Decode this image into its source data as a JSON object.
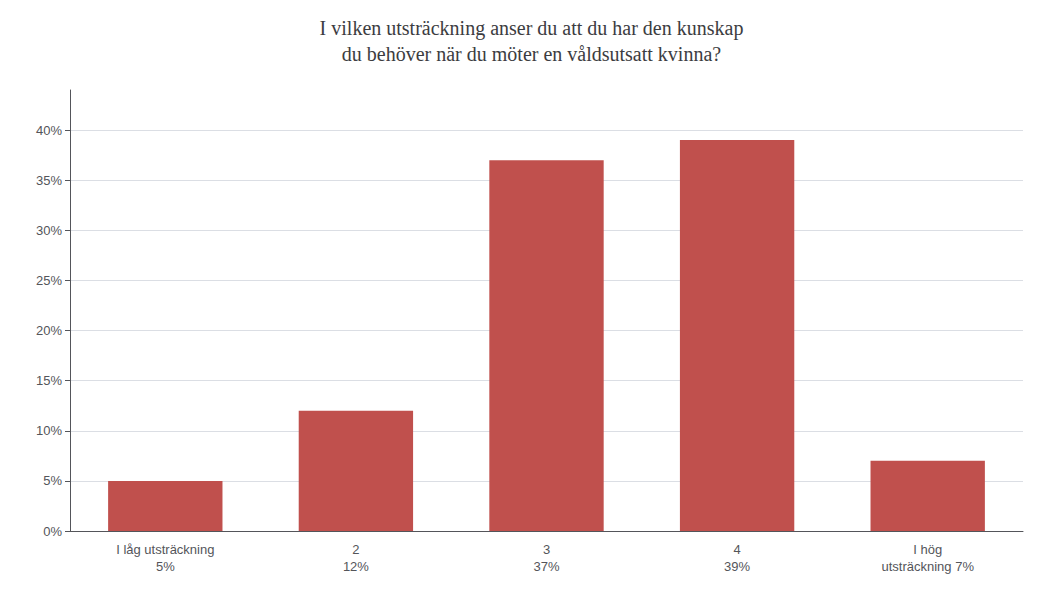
{
  "chart_data": {
    "type": "bar",
    "title": "I vilken utsträckning anser du att du har den kunskap\ndu behöver när du möter en våldsutsatt kvinna?",
    "categories": [
      "I låg utsträckning\n5%",
      "2\n12%",
      "3\n37%",
      "4\n39%",
      "I hög\nutsträckning 7%"
    ],
    "values": [
      5,
      12,
      37,
      39,
      7
    ],
    "color": "#C0504D",
    "ylim": [
      0,
      44
    ],
    "yticks": [
      {
        "value": 0,
        "label": "0%"
      },
      {
        "value": 5,
        "label": "5%"
      },
      {
        "value": 10,
        "label": "10%"
      },
      {
        "value": 15,
        "label": "15%"
      },
      {
        "value": 20,
        "label": "20%"
      },
      {
        "value": 25,
        "label": "25%"
      },
      {
        "value": 30,
        "label": "30%"
      },
      {
        "value": 35,
        "label": "35%"
      },
      {
        "value": 40,
        "label": "40%"
      }
    ],
    "grid": true
  }
}
